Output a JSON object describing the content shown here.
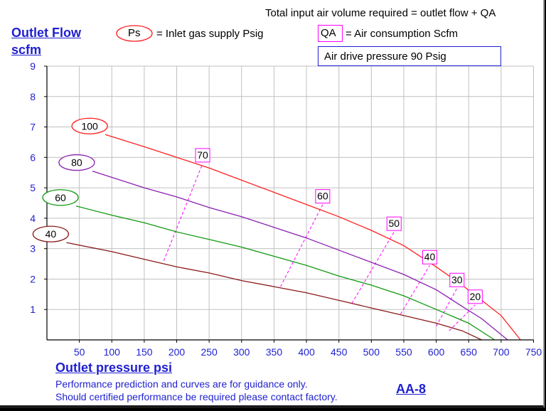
{
  "chart_data": {
    "type": "line",
    "title": "Total input air volume required = outlet flow + QA",
    "ylabel": [
      "Outlet Flow",
      "scfm"
    ],
    "xlabel": "Outlet pressure   psi",
    "xlim": [
      0,
      750
    ],
    "ylim": [
      0,
      9
    ],
    "xticks": [
      50,
      100,
      150,
      200,
      250,
      300,
      350,
      400,
      450,
      500,
      550,
      600,
      650,
      700,
      750
    ],
    "yticks": [
      1,
      2,
      3,
      4,
      5,
      6,
      7,
      8,
      9
    ],
    "grid": true,
    "legend": {
      "ps_symbol": "Ps",
      "ps_text": "= Inlet gas supply  Psig",
      "qa_symbol": "QA",
      "qa_text": "= Air consumption  Scfm"
    },
    "drive_pressure": "Air drive pressure  90 Psig",
    "series": [
      {
        "name": "100",
        "color": "#ff2020",
        "x": [
          90,
          150,
          200,
          250,
          300,
          350,
          400,
          450,
          500,
          550,
          600,
          640,
          670,
          700,
          730
        ],
        "y": [
          6.75,
          6.35,
          6.0,
          5.65,
          5.25,
          4.85,
          4.45,
          4.05,
          3.6,
          3.1,
          2.4,
          1.8,
          1.3,
          0.8,
          0.0
        ]
      },
      {
        "name": "80",
        "color": "#8a20b0",
        "x": [
          70,
          150,
          200,
          250,
          300,
          350,
          400,
          450,
          500,
          550,
          600,
          640,
          670,
          710
        ],
        "y": [
          5.55,
          5.0,
          4.7,
          4.35,
          4.05,
          3.7,
          3.35,
          2.95,
          2.55,
          2.15,
          1.65,
          1.1,
          0.7,
          0.0
        ]
      },
      {
        "name": "60",
        "color": "#119911",
        "x": [
          45,
          100,
          150,
          200,
          250,
          300,
          350,
          400,
          450,
          500,
          550,
          600,
          650,
          690
        ],
        "y": [
          4.4,
          4.1,
          3.85,
          3.55,
          3.3,
          3.05,
          2.75,
          2.45,
          2.1,
          1.8,
          1.45,
          1.0,
          0.55,
          0.0
        ]
      },
      {
        "name": "40",
        "color": "#8b1a1a",
        "x": [
          30,
          100,
          150,
          200,
          250,
          300,
          350,
          400,
          450,
          500,
          550,
          600,
          640,
          670
        ],
        "y": [
          3.2,
          2.9,
          2.65,
          2.4,
          2.2,
          1.95,
          1.75,
          1.55,
          1.3,
          1.05,
          0.8,
          0.55,
          0.3,
          0.0
        ]
      }
    ],
    "qa_lines": [
      {
        "label": "70",
        "x": [
          180,
          240
        ],
        "y": [
          2.6,
          5.8
        ]
      },
      {
        "label": "60",
        "x": [
          360,
          425
        ],
        "y": [
          1.75,
          4.45
        ]
      },
      {
        "label": "50",
        "x": [
          470,
          535
        ],
        "y": [
          1.2,
          3.55
        ]
      },
      {
        "label": "40",
        "x": [
          545,
          590
        ],
        "y": [
          0.85,
          2.45
        ]
      },
      {
        "label": "30",
        "x": [
          600,
          632
        ],
        "y": [
          0.45,
          1.7
        ]
      },
      {
        "label": "20",
        "x": [
          620,
          660
        ],
        "y": [
          0.3,
          1.15
        ]
      }
    ],
    "ps_labels": [
      "100",
      "80",
      "60",
      "40"
    ]
  },
  "footer": {
    "line1": "Performance prediction and curves are for guidance only.",
    "line2": "Should certified performance be required please contact factory.",
    "model": "AA-8"
  },
  "colors": {
    "axis_text": "#1f1fd0",
    "grid": "#c0c0c0",
    "qa": "#ff00ff"
  }
}
